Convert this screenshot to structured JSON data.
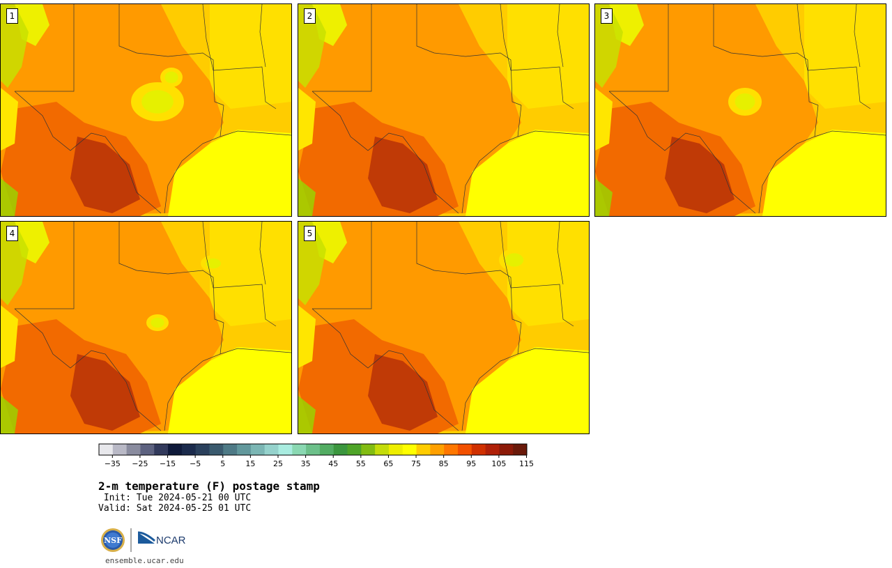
{
  "panels": [
    {
      "label": "1",
      "variant": 1
    },
    {
      "label": "2",
      "variant": 2
    },
    {
      "label": "3",
      "variant": 3
    },
    {
      "label": "4",
      "variant": 4
    },
    {
      "label": "5",
      "variant": 5
    }
  ],
  "colorbar": {
    "colors": [
      "#e8e8ec",
      "#b9b9c6",
      "#8a8c9f",
      "#5d6280",
      "#323a5c",
      "#0f1a3a",
      "#1b2b4c",
      "#2a405c",
      "#3a5a6e",
      "#4e7a86",
      "#62989c",
      "#7bb6b4",
      "#95d2cc",
      "#a9ece0",
      "#8ad8b2",
      "#6cc08a",
      "#52ac62",
      "#3b963e",
      "#4ea428",
      "#82bc12",
      "#c4dc0a",
      "#eeee00",
      "#ffff00",
      "#ffcc00",
      "#ffa000",
      "#ff7700",
      "#f25000",
      "#d03000",
      "#b02008",
      "#8c1a08",
      "#6a1a0a"
    ],
    "tick_labels": [
      "−35",
      "−25",
      "−15",
      "−5",
      "5",
      "15",
      "25",
      "35",
      "45",
      "55",
      "65",
      "75",
      "85",
      "95",
      "105",
      "115"
    ]
  },
  "title": "2-m temperature (F) postage stamp",
  "init": " Init: Tue 2024-05-21 00 UTC",
  "valid": "Valid: Sat 2024-05-25 01 UTC",
  "logos": {
    "nsf": "NSF",
    "ncar": "NCAR"
  },
  "url": "ensemble.ucar.edu"
}
